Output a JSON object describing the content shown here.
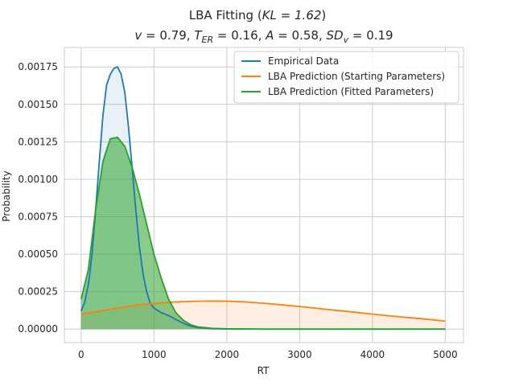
{
  "chart_data": {
    "type": "line",
    "title_line1": "LBA Fitting (KL = 1.62)",
    "title_line2": "v = 0.79, T_ER = 0.16, A = 0.58, SD_v = 0.19",
    "xlabel": "RT",
    "ylabel": "Probability",
    "xlim": [
      -230,
      5250
    ],
    "ylim": [
      -9e-05,
      0.00188
    ],
    "x_ticks": [
      0,
      1000,
      2000,
      3000,
      4000,
      5000
    ],
    "x_tick_labels": [
      "0",
      "1000",
      "2000",
      "3000",
      "4000",
      "5000"
    ],
    "y_ticks": [
      0,
      0.00025,
      0.0005,
      0.00075,
      0.001,
      0.00125,
      0.0015,
      0.00175
    ],
    "y_tick_labels": [
      "0.00000",
      "0.00025",
      "0.00050",
      "0.00075",
      "0.00100",
      "0.00125",
      "0.00150",
      "0.00175"
    ],
    "grid": true,
    "legend_placement": "top-right",
    "series": [
      {
        "name": "Empirical Data",
        "color": "#1f77b4",
        "fill": true,
        "x": [
          0,
          50,
          100,
          150,
          200,
          250,
          300,
          350,
          400,
          450,
          500,
          550,
          600,
          650,
          700,
          750,
          800,
          850,
          900,
          950,
          1000,
          1100,
          1200,
          1300,
          1400,
          1500,
          1600,
          1800,
          2000,
          2500,
          3000,
          3500,
          4000,
          4500,
          5000
        ],
        "y": [
          0.00012,
          0.00018,
          0.0003,
          0.0005,
          0.0008,
          0.00112,
          0.00143,
          0.00163,
          0.0017,
          0.00174,
          0.00175,
          0.0017,
          0.00158,
          0.00135,
          0.00108,
          0.0008,
          0.00055,
          0.00037,
          0.00025,
          0.00017,
          0.00014,
          0.00011,
          9e-05,
          6.5e-05,
          4e-05,
          2e-05,
          1e-05,
          3e-06,
          1e-06,
          0,
          0,
          0,
          0,
          0,
          0
        ]
      },
      {
        "name": "LBA Prediction (Starting Parameters)",
        "color": "#ff7f0e",
        "fill": true,
        "x": [
          0,
          250,
          500,
          750,
          1000,
          1250,
          1500,
          1750,
          2000,
          2250,
          2500,
          2750,
          3000,
          3250,
          3500,
          3750,
          4000,
          4250,
          4500,
          4750,
          5000
        ],
        "y": [
          0.0001,
          0.00012,
          0.00014,
          0.00016,
          0.00017,
          0.00018,
          0.000185,
          0.000187,
          0.000186,
          0.000181,
          0.000173,
          0.000162,
          0.000151,
          0.000138,
          0.000125,
          0.000113,
          0.0001,
          8.8e-05,
          7.6e-05,
          6.6e-05,
          5.3e-05
        ]
      },
      {
        "name": "LBA Prediction (Fitted Parameters)",
        "color": "#2ca02c",
        "fill": true,
        "x": [
          0,
          100,
          200,
          300,
          400,
          500,
          600,
          700,
          800,
          900,
          1000,
          1100,
          1200,
          1300,
          1400,
          1500,
          1600,
          1800,
          2000,
          2500,
          3000,
          4000,
          5000
        ],
        "y": [
          0.0002,
          0.0004,
          0.0008,
          0.00112,
          0.00127,
          0.00128,
          0.00122,
          0.00108,
          0.0009,
          0.0007,
          0.0005,
          0.00034,
          0.0002,
          0.00011,
          6e-05,
          3e-05,
          1.5e-05,
          5e-06,
          2e-06,
          0,
          0,
          0,
          0
        ]
      }
    ]
  }
}
